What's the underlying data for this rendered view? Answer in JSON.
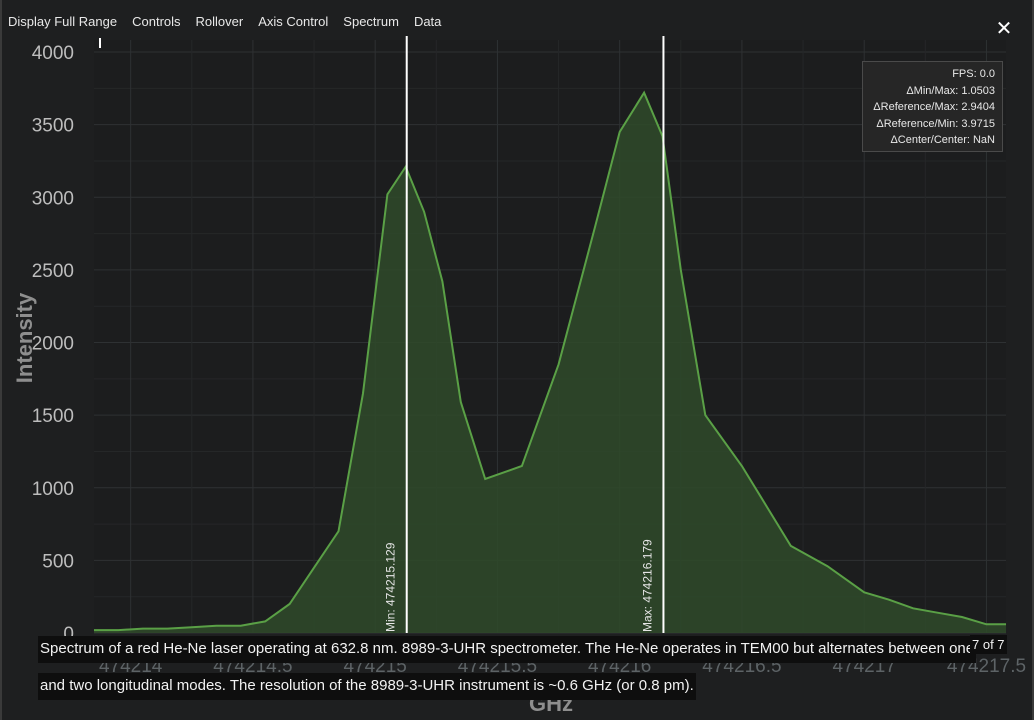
{
  "menu": {
    "items": [
      "Display Full Range",
      "Controls",
      "Rollover",
      "Axis Control",
      "Spectrum",
      "Data"
    ],
    "close_glyph": "✕"
  },
  "stats": {
    "fps": "FPS: 0.0",
    "delta_min_max": "ΔMin/Max: 1.0503",
    "delta_ref_max": "ΔReference/Max: 2.9404",
    "delta_ref_min": "ΔReference/Min: 3.9715",
    "delta_center": "ΔCenter/Center: NaN"
  },
  "caption": {
    "line1": "Spectrum of a red He-Ne laser operating at 632.8 nm. 8989-3-UHR spectrometer. The He-Ne operates in TEM00 but alternates between one",
    "line2": "and two longitudinal modes. The resolution of the 8989-3-UHR instrument is ~0.6 GHz (or 0.8 pm).",
    "counter": "7 of 7"
  },
  "colors": {
    "line": "#5aa046",
    "fill": "#2f4a2a",
    "grid": "#2e3133",
    "cursor": "#ffffff",
    "background": "#1e1f20"
  },
  "chart_data": {
    "type": "area",
    "xlabel": "GHz",
    "ylabel": "Intensity",
    "xlim": [
      474213.85,
      474217.58
    ],
    "ylim": [
      0,
      4000
    ],
    "grid": true,
    "x_ticks": [
      474214,
      474214.5,
      474215,
      474215.5,
      474216,
      474216.5,
      474217,
      474217.5
    ],
    "x_tick_labels": [
      "474214",
      "474214.5",
      "474215",
      "474215.5",
      "474216",
      "474216.5",
      "474217",
      "474217.5"
    ],
    "y_ticks": [
      0,
      500,
      1000,
      1500,
      2000,
      2500,
      3000,
      3500,
      4000
    ],
    "y_tick_labels": [
      "0",
      "500",
      "1000",
      "1500",
      "2000",
      "2500",
      "3000",
      "3500",
      "4000"
    ],
    "series": [
      {
        "x": [
          474213.85,
          474213.95,
          474214.05,
          474214.15,
          474214.25,
          474214.35,
          474214.45,
          474214.55,
          474214.65,
          474214.75,
          474214.85,
          474214.95,
          474215.05,
          474215.125,
          474215.2,
          474215.275,
          474215.35,
          474215.45,
          474215.6,
          474215.75,
          474215.9,
          474216.0,
          474216.1,
          474216.175,
          474216.25,
          474216.35,
          474216.5,
          474216.7,
          474216.85,
          474217.0,
          474217.1,
          474217.2,
          474217.3,
          474217.4,
          474217.5,
          474217.58
        ],
        "y": [
          20,
          20,
          30,
          30,
          40,
          50,
          50,
          80,
          200,
          450,
          700,
          1650,
          3020,
          3210,
          2900,
          2420,
          1590,
          1060,
          1150,
          1850,
          2800,
          3450,
          3720,
          3420,
          2500,
          1500,
          1150,
          600,
          460,
          280,
          230,
          170,
          140,
          110,
          60,
          60
        ]
      }
    ],
    "cursors": [
      {
        "x": 474215.129,
        "label": "Min: 474215.129"
      },
      {
        "x": 474216.179,
        "label": "Max: 474216.179"
      }
    ]
  }
}
